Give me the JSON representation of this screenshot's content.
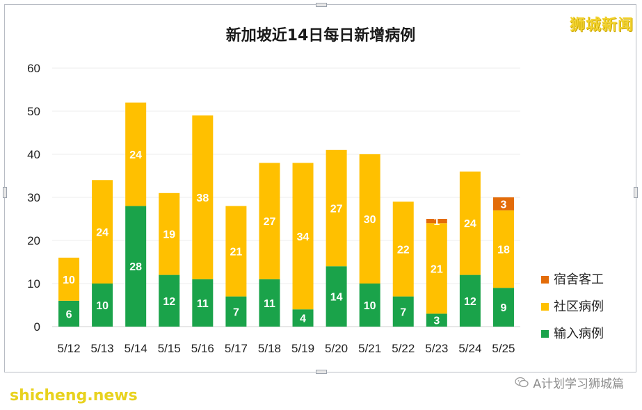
{
  "chart_data": {
    "type": "bar",
    "stacked": true,
    "title": "新加坡近14日每日新增病例",
    "categories": [
      "5/12",
      "5/13",
      "5/14",
      "5/15",
      "5/16",
      "5/17",
      "5/18",
      "5/19",
      "5/20",
      "5/21",
      "5/22",
      "5/23",
      "5/24",
      "5/25"
    ],
    "series": [
      {
        "name": "输入病例",
        "color": "#1aa34a",
        "values": [
          6,
          10,
          28,
          12,
          11,
          7,
          11,
          4,
          14,
          10,
          7,
          3,
          12,
          9
        ]
      },
      {
        "name": "社区病例",
        "color": "#ffc000",
        "values": [
          10,
          24,
          24,
          19,
          38,
          21,
          27,
          34,
          27,
          30,
          22,
          21,
          24,
          18
        ]
      },
      {
        "name": "宿舍客工",
        "color": "#e36c09",
        "values": [
          0,
          0,
          0,
          0,
          0,
          0,
          0,
          0,
          0,
          0,
          0,
          1,
          0,
          3
        ]
      }
    ],
    "ylim": [
      0,
      60
    ],
    "yticks": [
      0,
      10,
      20,
      30,
      40,
      50,
      60
    ],
    "grid": true,
    "legend_position": "right",
    "xlabel": "",
    "ylabel": ""
  },
  "watermarks": {
    "top_right": "狮城新闻",
    "bottom_left": "shicheng.news",
    "bottom_right": "A计划学习狮城篇",
    "bottom_right_icon": "wechat-icon"
  }
}
